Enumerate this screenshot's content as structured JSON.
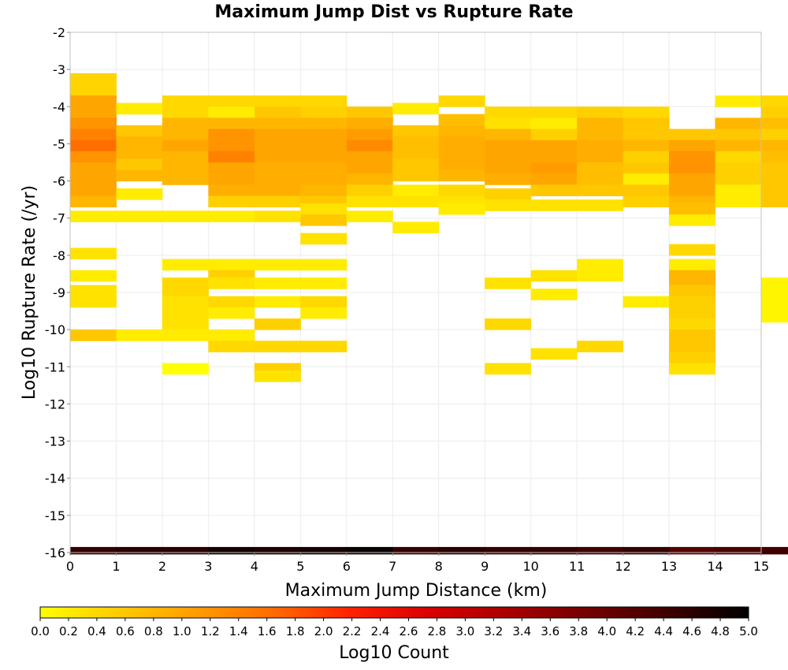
{
  "chart_data": {
    "type": "heatmap",
    "title": "Maximum Jump Dist vs Rupture Rate",
    "xlabel": "Maximum Jump Distance (km)",
    "ylabel": "Log10 Rupture Rate (/yr)",
    "xlim": [
      0,
      15
    ],
    "ylim": [
      -16,
      -2
    ],
    "x_ticks": [
      "0",
      "1",
      "2",
      "3",
      "4",
      "5",
      "6",
      "7",
      "8",
      "9",
      "10",
      "11",
      "12",
      "13",
      "14",
      "15"
    ],
    "y_ticks": [
      "-2",
      "-3",
      "-4",
      "-5",
      "-6",
      "-7",
      "-8",
      "-9",
      "-10",
      "-11",
      "-12",
      "-13",
      "-14",
      "-15",
      "-16"
    ],
    "x_bin_width": 1,
    "y_bin_height": 0.3,
    "colorbar": {
      "label": "Log10 Count",
      "range": [
        0,
        5
      ],
      "colormap": "yellow-orange-red-black",
      "ticks": [
        "0.0",
        "0.2",
        "0.4",
        "0.6",
        "0.8",
        "1.0",
        "1.2",
        "1.4",
        "1.6",
        "1.8",
        "2.0",
        "2.2",
        "2.4",
        "2.6",
        "2.8",
        "3.0",
        "3.2",
        "3.4",
        "3.6",
        "3.8",
        "4.0",
        "4.2",
        "4.4",
        "4.6",
        "4.8",
        "5.0"
      ]
    },
    "grid": true,
    "cells": [
      [
        0,
        -3.1,
        0.45
      ],
      [
        0,
        -3.4,
        0.45
      ],
      [
        0,
        -3.7,
        1.0
      ],
      [
        0,
        -4.0,
        1.0
      ],
      [
        0,
        -4.3,
        1.2
      ],
      [
        0,
        -4.6,
        1.4
      ],
      [
        0,
        -4.9,
        1.6
      ],
      [
        0,
        -5.2,
        1.2
      ],
      [
        0,
        -5.5,
        1.0
      ],
      [
        0,
        -5.8,
        1.0
      ],
      [
        0,
        -6.1,
        1.0
      ],
      [
        0,
        -6.4,
        0.8
      ],
      [
        0,
        -6.8,
        0.2
      ],
      [
        0,
        -7.8,
        0.3
      ],
      [
        0,
        -8.4,
        0.2
      ],
      [
        0,
        -8.8,
        0.3
      ],
      [
        0,
        -9.1,
        0.3
      ],
      [
        0,
        -10.0,
        0.6
      ],
      [
        1,
        -3.9,
        0.2
      ],
      [
        1,
        -4.5,
        0.6
      ],
      [
        1,
        -4.8,
        0.8
      ],
      [
        1,
        -5.1,
        0.8
      ],
      [
        1,
        -5.4,
        0.6
      ],
      [
        1,
        -5.7,
        0.8
      ],
      [
        1,
        -6.2,
        0.2
      ],
      [
        1,
        -6.8,
        0.2
      ],
      [
        1,
        -10.0,
        0.2
      ],
      [
        2,
        -3.7,
        0.4
      ],
      [
        2,
        -4.0,
        0.4
      ],
      [
        2,
        -4.3,
        0.8
      ],
      [
        2,
        -4.6,
        0.8
      ],
      [
        2,
        -4.9,
        1.0
      ],
      [
        2,
        -5.2,
        0.8
      ],
      [
        2,
        -5.5,
        0.8
      ],
      [
        2,
        -5.8,
        0.8
      ],
      [
        2,
        -6.8,
        0.2
      ],
      [
        2,
        -8.1,
        0.2
      ],
      [
        2,
        -8.6,
        0.4
      ],
      [
        2,
        -8.8,
        0.4
      ],
      [
        2,
        -9.1,
        0.3
      ],
      [
        2,
        -9.4,
        0.3
      ],
      [
        2,
        -9.7,
        0.3
      ],
      [
        2,
        -10.0,
        0.2
      ],
      [
        2,
        -10.9,
        0.0
      ],
      [
        3,
        -3.7,
        0.4
      ],
      [
        3,
        -4.0,
        0.2
      ],
      [
        3,
        -4.3,
        0.8
      ],
      [
        3,
        -4.6,
        1.2
      ],
      [
        3,
        -4.9,
        1.2
      ],
      [
        3,
        -5.2,
        1.4
      ],
      [
        3,
        -5.5,
        1.0
      ],
      [
        3,
        -5.8,
        1.0
      ],
      [
        3,
        -6.1,
        0.9
      ],
      [
        3,
        -6.4,
        0.5
      ],
      [
        3,
        -6.8,
        0.2
      ],
      [
        3,
        -8.1,
        0.2
      ],
      [
        3,
        -8.4,
        0.5
      ],
      [
        3,
        -8.6,
        0.3
      ],
      [
        3,
        -9.1,
        0.4
      ],
      [
        3,
        -9.4,
        0.2
      ],
      [
        3,
        -10.0,
        0.2
      ],
      [
        3,
        -10.3,
        0.4
      ],
      [
        4,
        -3.7,
        0.4
      ],
      [
        4,
        -4.0,
        0.6
      ],
      [
        4,
        -4.3,
        0.8
      ],
      [
        4,
        -4.6,
        1.0
      ],
      [
        4,
        -4.9,
        1.0
      ],
      [
        4,
        -5.2,
        1.0
      ],
      [
        4,
        -5.5,
        0.9
      ],
      [
        4,
        -5.8,
        0.9
      ],
      [
        4,
        -6.1,
        0.9
      ],
      [
        4,
        -6.4,
        0.5
      ],
      [
        4,
        -6.8,
        0.3
      ],
      [
        4,
        -8.1,
        0.2
      ],
      [
        4,
        -8.6,
        0.2
      ],
      [
        4,
        -9.1,
        0.2
      ],
      [
        4,
        -9.7,
        0.5
      ],
      [
        4,
        -10.3,
        0.4
      ],
      [
        4,
        -10.9,
        0.5
      ],
      [
        4,
        -11.1,
        0.3
      ],
      [
        5,
        -3.7,
        0.4
      ],
      [
        5,
        -4.0,
        0.5
      ],
      [
        5,
        -4.3,
        0.8
      ],
      [
        5,
        -4.6,
        1.0
      ],
      [
        5,
        -4.9,
        1.0
      ],
      [
        5,
        -5.2,
        1.0
      ],
      [
        5,
        -5.5,
        0.9
      ],
      [
        5,
        -5.8,
        0.9
      ],
      [
        5,
        -6.1,
        0.8
      ],
      [
        5,
        -6.4,
        0.6
      ],
      [
        5,
        -6.6,
        0.3
      ],
      [
        5,
        -6.9,
        0.6
      ],
      [
        5,
        -7.4,
        0.3
      ],
      [
        5,
        -8.1,
        0.2
      ],
      [
        5,
        -8.6,
        0.2
      ],
      [
        5,
        -9.1,
        0.4
      ],
      [
        5,
        -9.4,
        0.2
      ],
      [
        5,
        -10.3,
        0.4
      ],
      [
        6,
        -4.0,
        0.6
      ],
      [
        6,
        -4.3,
        0.9
      ],
      [
        6,
        -4.6,
        1.1
      ],
      [
        6,
        -4.9,
        1.3
      ],
      [
        6,
        -5.2,
        1.0
      ],
      [
        6,
        -5.5,
        1.0
      ],
      [
        6,
        -5.8,
        0.8
      ],
      [
        6,
        -6.1,
        0.5
      ],
      [
        6,
        -6.4,
        0.3
      ],
      [
        6,
        -6.8,
        0.2
      ],
      [
        7,
        -3.9,
        0.2
      ],
      [
        7,
        -4.5,
        0.6
      ],
      [
        7,
        -4.8,
        0.7
      ],
      [
        7,
        -5.1,
        0.7
      ],
      [
        7,
        -5.4,
        0.6
      ],
      [
        7,
        -5.7,
        0.6
      ],
      [
        7,
        -6.1,
        0.2
      ],
      [
        7,
        -6.4,
        0.3
      ],
      [
        7,
        -7.1,
        0.2
      ],
      [
        8,
        -3.7,
        0.4
      ],
      [
        8,
        -4.2,
        0.7
      ],
      [
        8,
        -4.5,
        0.8
      ],
      [
        8,
        -4.8,
        0.9
      ],
      [
        8,
        -5.1,
        0.9
      ],
      [
        8,
        -5.4,
        0.9
      ],
      [
        8,
        -5.7,
        0.8
      ],
      [
        8,
        -6.1,
        0.4
      ],
      [
        8,
        -6.4,
        0.3
      ],
      [
        8,
        -6.6,
        0.2
      ],
      [
        9,
        -4.0,
        0.4
      ],
      [
        9,
        -4.3,
        0.3
      ],
      [
        9,
        -4.6,
        0.8
      ],
      [
        9,
        -4.9,
        1.0
      ],
      [
        9,
        -5.2,
        1.0
      ],
      [
        9,
        -5.5,
        1.0
      ],
      [
        9,
        -5.8,
        0.9
      ],
      [
        9,
        -6.2,
        0.5
      ],
      [
        9,
        -6.5,
        0.3
      ],
      [
        9,
        -8.6,
        0.3
      ],
      [
        9,
        -9.7,
        0.4
      ],
      [
        9,
        -10.9,
        0.3
      ],
      [
        10,
        -4.0,
        0.4
      ],
      [
        10,
        -4.3,
        0.2
      ],
      [
        10,
        -4.6,
        0.5
      ],
      [
        10,
        -4.9,
        1.0
      ],
      [
        10,
        -5.2,
        1.0
      ],
      [
        10,
        -5.5,
        1.1
      ],
      [
        10,
        -5.8,
        1.0
      ],
      [
        10,
        -6.1,
        0.6
      ],
      [
        10,
        -6.5,
        0.3
      ],
      [
        10,
        -8.4,
        0.3
      ],
      [
        10,
        -8.9,
        0.2
      ],
      [
        10,
        -10.5,
        0.3
      ],
      [
        11,
        -4.0,
        0.5
      ],
      [
        11,
        -4.3,
        0.8
      ],
      [
        11,
        -4.6,
        0.8
      ],
      [
        11,
        -4.9,
        0.9
      ],
      [
        11,
        -5.2,
        0.9
      ],
      [
        11,
        -5.5,
        0.7
      ],
      [
        11,
        -5.8,
        0.7
      ],
      [
        11,
        -6.1,
        0.6
      ],
      [
        11,
        -6.5,
        0.3
      ],
      [
        11,
        -8.1,
        0.2
      ],
      [
        11,
        -8.4,
        0.2
      ],
      [
        11,
        -10.3,
        0.4
      ],
      [
        12,
        -4.0,
        0.4
      ],
      [
        12,
        -4.3,
        0.6
      ],
      [
        12,
        -4.6,
        0.6
      ],
      [
        12,
        -4.9,
        0.8
      ],
      [
        12,
        -5.2,
        0.5
      ],
      [
        12,
        -5.5,
        0.6
      ],
      [
        12,
        -5.8,
        0.2
      ],
      [
        12,
        -6.1,
        0.6
      ],
      [
        12,
        -6.4,
        0.5
      ],
      [
        12,
        -9.1,
        0.2
      ],
      [
        13,
        -4.6,
        0.6
      ],
      [
        13,
        -4.9,
        1.0
      ],
      [
        13,
        -5.2,
        1.2
      ],
      [
        13,
        -5.5,
        1.2
      ],
      [
        13,
        -5.8,
        1.0
      ],
      [
        13,
        -6.1,
        1.0
      ],
      [
        13,
        -6.4,
        0.8
      ],
      [
        13,
        -6.6,
        0.7
      ],
      [
        13,
        -6.9,
        0.2
      ],
      [
        13,
        -7.7,
        0.4
      ],
      [
        13,
        -8.1,
        0.2
      ],
      [
        13,
        -8.4,
        0.8
      ],
      [
        13,
        -8.6,
        0.8
      ],
      [
        13,
        -8.8,
        0.6
      ],
      [
        13,
        -9.1,
        0.5
      ],
      [
        13,
        -9.4,
        0.5
      ],
      [
        13,
        -9.7,
        0.4
      ],
      [
        13,
        -10.0,
        0.6
      ],
      [
        13,
        -10.3,
        0.6
      ],
      [
        13,
        -10.6,
        0.5
      ],
      [
        13,
        -10.9,
        0.3
      ],
      [
        14,
        -3.7,
        0.2
      ],
      [
        14,
        -4.3,
        0.8
      ],
      [
        14,
        -4.6,
        0.6
      ],
      [
        14,
        -4.9,
        0.8
      ],
      [
        14,
        -5.2,
        0.4
      ],
      [
        14,
        -5.5,
        0.5
      ],
      [
        14,
        -5.8,
        0.5
      ],
      [
        14,
        -6.1,
        0.2
      ],
      [
        14,
        -6.4,
        0.2
      ],
      [
        15,
        -3.7,
        0.4
      ],
      [
        15,
        -4.0,
        0.5
      ],
      [
        15,
        -4.3,
        0.7
      ],
      [
        15,
        -4.6,
        0.5
      ],
      [
        15,
        -4.9,
        0.8
      ],
      [
        15,
        -5.2,
        0.7
      ],
      [
        15,
        -5.5,
        0.6
      ],
      [
        15,
        -5.8,
        0.6
      ],
      [
        15,
        -6.1,
        0.6
      ],
      [
        15,
        -6.4,
        0.6
      ],
      [
        15,
        -8.6,
        0.1
      ],
      [
        15,
        -8.9,
        0.1
      ],
      [
        15,
        -9.2,
        0.1
      ],
      [
        15,
        -9.5,
        0.1
      ]
    ],
    "bottom_row": {
      "y": -16,
      "values": [
        4.5,
        4.6,
        4.6,
        4.8,
        4.7,
        4.8,
        4.9,
        4.5,
        4.6,
        4.5,
        4.5,
        4.4,
        4.5,
        4.2,
        4.3,
        4.4
      ]
    }
  }
}
